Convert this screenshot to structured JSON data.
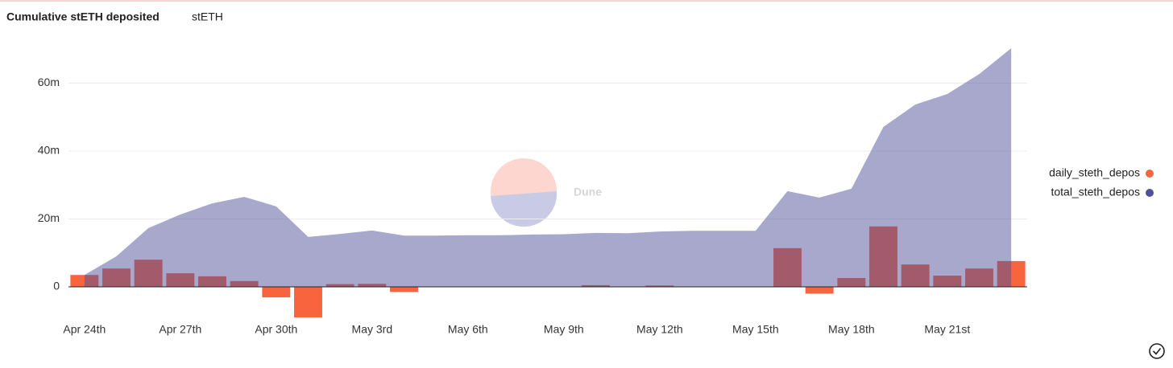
{
  "chart_data": {
    "type": "bar-area",
    "title": "Cumulative stETH deposited",
    "subtitle": "stETH",
    "watermark": "Dune",
    "categories": [
      "Apr 24th",
      null,
      null,
      "Apr 27th",
      null,
      null,
      "Apr 30th",
      null,
      null,
      "May 3rd",
      null,
      null,
      "May 6th",
      null,
      null,
      "May 9th",
      null,
      null,
      "May 12th",
      null,
      null,
      "May 15th",
      null,
      null,
      "May 18th",
      null,
      null,
      "May 21st",
      null,
      null
    ],
    "series": [
      {
        "name": "daily_steth_depos",
        "color": "#f7643e",
        "kind": "bar",
        "values": [
          3.5,
          5.4,
          8.0,
          4.0,
          3.1,
          1.7,
          -3.1,
          -9.0,
          0.8,
          0.9,
          -1.5,
          0,
          -0.1,
          0,
          -0.1,
          0,
          0.5,
          -0.1,
          0.4,
          0,
          0,
          0,
          11.4,
          -2.0,
          2.6,
          17.8,
          6.6,
          3.3,
          5.4,
          7.6
        ]
      },
      {
        "name": "total_steth_depos",
        "color": "#4f519a",
        "kind": "area",
        "values": [
          3.5,
          9.0,
          17.3,
          21.3,
          24.6,
          26.5,
          23.7,
          14.7,
          15.6,
          16.6,
          15.1,
          15.1,
          15.2,
          15.2,
          15.4,
          15.5,
          15.9,
          15.8,
          16.3,
          16.5,
          16.5,
          16.5,
          28.2,
          26.3,
          28.9,
          47.1,
          53.7,
          56.8,
          62.7,
          70.3
        ]
      }
    ],
    "ylim": [
      -10,
      72
    ],
    "yticks": [
      0,
      {
        "value": 20,
        "label": "20m"
      },
      {
        "value": 40,
        "label": "40m"
      },
      {
        "value": 60,
        "label": "60m"
      }
    ],
    "grid": true,
    "legend": "right"
  }
}
